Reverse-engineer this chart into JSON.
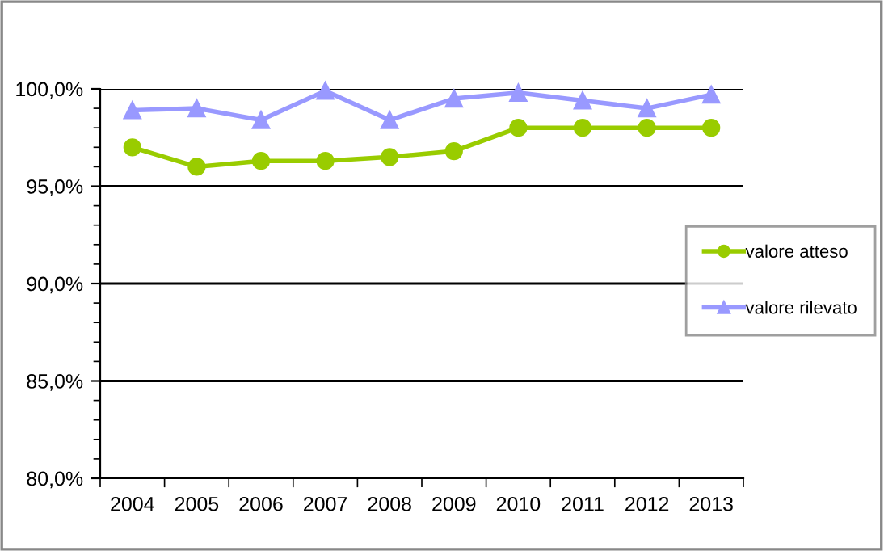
{
  "chart_data": {
    "type": "line",
    "categories": [
      "2004",
      "2005",
      "2006",
      "2007",
      "2008",
      "2009",
      "2010",
      "2011",
      "2012",
      "2013"
    ],
    "series": [
      {
        "name": "valore atteso",
        "color": "#99cc00",
        "marker": "circle",
        "values": [
          97.0,
          96.0,
          96.3,
          96.3,
          96.5,
          96.8,
          98.0,
          98.0,
          98.0,
          98.0
        ]
      },
      {
        "name": "valore rilevato",
        "color": "#9999ff",
        "marker": "triangle",
        "values": [
          98.9,
          99.0,
          98.4,
          99.9,
          98.4,
          99.5,
          99.8,
          99.4,
          99.0,
          99.7
        ]
      }
    ],
    "ylim": [
      80,
      100
    ],
    "yticks": [
      {
        "value": 80,
        "label": "80,0%"
      },
      {
        "value": 85,
        "label": "85,0%"
      },
      {
        "value": 90,
        "label": "90,0%"
      },
      {
        "value": 95,
        "label": "95,0%"
      },
      {
        "value": 100,
        "label": "100,0%"
      }
    ],
    "grid": "y",
    "legend": "right",
    "line_style": "solid"
  }
}
